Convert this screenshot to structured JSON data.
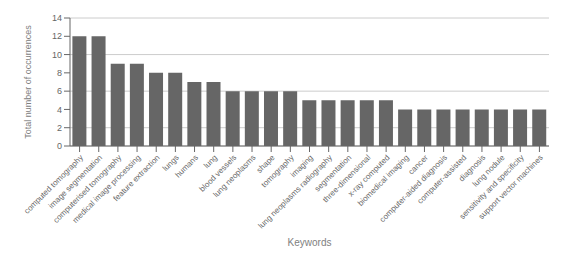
{
  "chart_data": {
    "type": "bar",
    "xlabel": "Keywords",
    "ylabel": "Total number of occurrences",
    "categories": [
      "computed tomography",
      "image segmentation",
      "computerised tomography",
      "medical image processing",
      "feature extraction",
      "lungs",
      "humans",
      "lung",
      "blood vessels",
      "lung neoplasms",
      "shape",
      "tomography",
      "imaging",
      "lung neoplasms radiography",
      "segmentation",
      "three-dimensional",
      "x-ray computed",
      "biomedical imaging",
      "cancer",
      "computer-aided diagnosis",
      "computer-assisted",
      "diagnosis",
      "lung nodule",
      "sensitivity and specificity",
      "support vector machines"
    ],
    "values": [
      12,
      12,
      9,
      9,
      8,
      8,
      7,
      7,
      6,
      6,
      6,
      6,
      5,
      5,
      5,
      5,
      5,
      4,
      4,
      4,
      4,
      4,
      4,
      4,
      4
    ],
    "color": "#666666",
    "ylim": [
      0,
      14
    ],
    "yticks": [
      0,
      2,
      4,
      6,
      8,
      10,
      12,
      14
    ],
    "grid": true
  }
}
